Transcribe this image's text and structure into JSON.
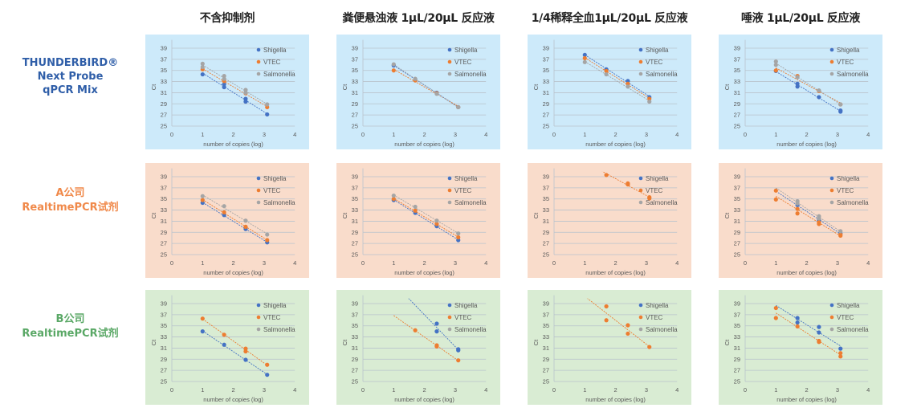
{
  "column_headers": [
    "不含抑制剂",
    "粪便悬浊液 1μL/20μL 反应液",
    "1/4稀释全血1μL/20μL 反应液",
    "唾液 1μL/20μL 反应液"
  ],
  "row_labels": [
    {
      "lines": [
        "THUNDERBIRD®",
        "Next Probe",
        "qPCR Mix"
      ],
      "color": "#2f5ea8"
    },
    {
      "lines": [
        "A公司",
        "RealtimePCR试剂"
      ],
      "color": "#f0894a"
    },
    {
      "lines": [
        "B公司",
        "RealtimePCR试剂"
      ],
      "color": "#5aa866"
    }
  ],
  "panel_colors": [
    "#cdeafa",
    "#f9dccb",
    "#d9ecd3"
  ],
  "series_colors": {
    "Shigella": "#4472c4",
    "VTEC": "#ed7d31",
    "Salmonella": "#a5a5a5"
  },
  "chart_data": [
    {
      "row": 0,
      "col": 0,
      "type": "scatter",
      "xlabel": "number of copies (log)",
      "ylabel": "Ct",
      "xlim": [
        0,
        4
      ],
      "ylim": [
        25,
        39
      ],
      "xticks": [
        "0",
        "1",
        "2",
        "3",
        "4"
      ],
      "yticks": [
        "25",
        "27",
        "29",
        "31",
        "33",
        "35",
        "37",
        "39"
      ],
      "grid": "horizontal",
      "trendline": "linear",
      "legend_position": "top-right",
      "legend": [
        "Shigella",
        "VTEC",
        "Salmonella"
      ],
      "series": [
        {
          "name": "Shigella",
          "points": [
            [
              1,
              34.3
            ],
            [
              1.7,
              32.5
            ],
            [
              1.7,
              32.0
            ],
            [
              2.4,
              29.9
            ],
            [
              2.4,
              29.4
            ],
            [
              3.1,
              27.1
            ]
          ]
        },
        {
          "name": "VTEC",
          "points": [
            [
              1,
              35.2
            ],
            [
              1.7,
              33.1
            ],
            [
              2.4,
              30.9
            ],
            [
              3.1,
              28.4
            ]
          ]
        },
        {
          "name": "Salmonella",
          "points": [
            [
              1,
              36.2
            ],
            [
              1,
              35.6
            ],
            [
              1.7,
              34.0
            ],
            [
              1.7,
              33.5
            ],
            [
              2.4,
              31.5
            ],
            [
              2.4,
              31.0
            ],
            [
              3.1,
              28.9
            ]
          ]
        }
      ]
    },
    {
      "row": 0,
      "col": 1,
      "type": "scatter",
      "xlabel": "number of copies (log)",
      "ylabel": "Ct",
      "xlim": [
        0,
        4
      ],
      "ylim": [
        25,
        39
      ],
      "xticks": [
        "0",
        "1",
        "2",
        "3",
        "4"
      ],
      "yticks": [
        "25",
        "27",
        "29",
        "31",
        "33",
        "35",
        "37",
        "39"
      ],
      "grid": "horizontal",
      "trendline": "linear",
      "legend_position": "top-right",
      "legend": [
        "Shigella",
        "VTEC",
        "Salmonella"
      ],
      "series": [
        {
          "name": "Shigella",
          "points": [
            [
              1,
              35.9
            ],
            [
              1.7,
              33.4
            ],
            [
              2.4,
              31.0
            ],
            [
              3.1,
              28.4
            ]
          ]
        },
        {
          "name": "VTEC",
          "points": [
            [
              1,
              35.0
            ],
            [
              1.7,
              33.2
            ],
            [
              2.4,
              30.9
            ],
            [
              3.1,
              28.4
            ]
          ]
        },
        {
          "name": "Salmonella",
          "points": [
            [
              1,
              36.1
            ],
            [
              1.7,
              33.5
            ],
            [
              2.4,
              30.8
            ],
            [
              3.1,
              28.4
            ]
          ]
        }
      ]
    },
    {
      "row": 0,
      "col": 2,
      "type": "scatter",
      "xlabel": "number of copies (log)",
      "ylabel": "Ct",
      "xlim": [
        0,
        4
      ],
      "ylim": [
        25,
        39
      ],
      "xticks": [
        "0",
        "1",
        "2",
        "3",
        "4"
      ],
      "yticks": [
        "25",
        "27",
        "29",
        "31",
        "33",
        "35",
        "37",
        "39"
      ],
      "grid": "horizontal",
      "trendline": "linear",
      "legend_position": "top-right",
      "legend": [
        "Shigella",
        "VTEC",
        "Salmonella"
      ],
      "series": [
        {
          "name": "Shigella",
          "points": [
            [
              1,
              37.8
            ],
            [
              1.7,
              35.2
            ],
            [
              2.4,
              33.1
            ],
            [
              3.1,
              30.2
            ]
          ]
        },
        {
          "name": "VTEC",
          "points": [
            [
              1,
              37.2
            ],
            [
              1.7,
              34.9
            ],
            [
              2.4,
              32.6
            ],
            [
              3.1,
              29.9
            ]
          ]
        },
        {
          "name": "Salmonella",
          "points": [
            [
              1,
              36.5
            ],
            [
              1.7,
              34.3
            ],
            [
              2.4,
              32.1
            ],
            [
              3.1,
              29.4
            ]
          ]
        }
      ]
    },
    {
      "row": 0,
      "col": 3,
      "type": "scatter",
      "xlabel": "number of copies (log)",
      "ylabel": "Ct",
      "xlim": [
        0,
        4
      ],
      "ylim": [
        25,
        39
      ],
      "xticks": [
        "0",
        "1",
        "2",
        "3",
        "4"
      ],
      "yticks": [
        "25",
        "27",
        "29",
        "31",
        "33",
        "35",
        "37",
        "39"
      ],
      "grid": "horizontal",
      "trendline": "linear",
      "legend_position": "top-right",
      "legend": [
        "Shigella",
        "VTEC",
        "Salmonella"
      ],
      "series": [
        {
          "name": "Shigella",
          "points": [
            [
              1,
              34.9
            ],
            [
              1.7,
              32.6
            ],
            [
              1.7,
              32.1
            ],
            [
              2.4,
              30.2
            ],
            [
              3.1,
              27.8
            ],
            [
              3.1,
              27.6
            ]
          ]
        },
        {
          "name": "VTEC",
          "points": [
            [
              1,
              35.0
            ],
            [
              1.7,
              34.0
            ],
            [
              2.4,
              31.3
            ],
            [
              3.1,
              28.9
            ]
          ]
        },
        {
          "name": "Salmonella",
          "points": [
            [
              1,
              36.6
            ],
            [
              1,
              36.0
            ],
            [
              1.7,
              33.8
            ],
            [
              2.4,
              31.4
            ],
            [
              3.1,
              28.9
            ]
          ]
        }
      ]
    },
    {
      "row": 1,
      "col": 0,
      "type": "scatter",
      "xlabel": "number of copies (log)",
      "ylabel": "Ct",
      "xlim": [
        0,
        4
      ],
      "ylim": [
        25,
        39
      ],
      "xticks": [
        "0",
        "1",
        "2",
        "3",
        "4"
      ],
      "yticks": [
        "25",
        "27",
        "29",
        "31",
        "33",
        "35",
        "37",
        "39"
      ],
      "grid": "horizontal",
      "trendline": "linear",
      "legend_position": "top-right",
      "legend": [
        "Shigella",
        "VTEC",
        "Salmonella"
      ],
      "series": [
        {
          "name": "Shigella",
          "points": [
            [
              1,
              34.3
            ],
            [
              1.7,
              32.1
            ],
            [
              2.4,
              29.6
            ],
            [
              3.1,
              27.2
            ]
          ]
        },
        {
          "name": "VTEC",
          "points": [
            [
              1,
              34.8
            ],
            [
              1.7,
              32.6
            ],
            [
              2.4,
              30.0
            ],
            [
              3.1,
              27.6
            ]
          ]
        },
        {
          "name": "Salmonella",
          "points": [
            [
              1,
              35.5
            ],
            [
              1.7,
              33.7
            ],
            [
              2.4,
              31.1
            ],
            [
              3.1,
              28.6
            ]
          ]
        }
      ]
    },
    {
      "row": 1,
      "col": 1,
      "type": "scatter",
      "xlabel": "number of copies (log)",
      "ylabel": "Ct",
      "xlim": [
        0,
        4
      ],
      "ylim": [
        25,
        39
      ],
      "xticks": [
        "0",
        "1",
        "2",
        "3",
        "4"
      ],
      "yticks": [
        "25",
        "27",
        "29",
        "31",
        "33",
        "35",
        "37",
        "39"
      ],
      "grid": "horizontal",
      "trendline": "linear",
      "legend_position": "top-right",
      "legend": [
        "Shigella",
        "VTEC",
        "Salmonella"
      ],
      "series": [
        {
          "name": "Shigella",
          "points": [
            [
              1,
              34.8
            ],
            [
              1.7,
              32.5
            ],
            [
              2.4,
              30.1
            ],
            [
              3.1,
              27.6
            ]
          ]
        },
        {
          "name": "VTEC",
          "points": [
            [
              1,
              35.0
            ],
            [
              1.7,
              32.9
            ],
            [
              2.4,
              30.5
            ],
            [
              3.1,
              28.1
            ]
          ]
        },
        {
          "name": "Salmonella",
          "points": [
            [
              1,
              35.6
            ],
            [
              1.7,
              33.6
            ],
            [
              2.4,
              31.1
            ],
            [
              3.1,
              28.8
            ]
          ]
        }
      ]
    },
    {
      "row": 1,
      "col": 2,
      "type": "scatter",
      "xlabel": "number of copies (log)",
      "ylabel": "Ct",
      "xlim": [
        0,
        4
      ],
      "ylim": [
        25,
        39
      ],
      "xticks": [
        "0",
        "1",
        "2",
        "3",
        "4"
      ],
      "yticks": [
        "25",
        "27",
        "29",
        "31",
        "33",
        "35",
        "37",
        "39"
      ],
      "grid": "horizontal",
      "trendline": "linear",
      "legend_position": "top-right",
      "legend": [
        "Shigella",
        "VTEC",
        "Salmonella"
      ],
      "series": [
        {
          "name": "VTEC",
          "points": [
            [
              1.7,
              39.3
            ],
            [
              2.4,
              37.8
            ],
            [
              2.4,
              37.6
            ],
            [
              3.1,
              35.3
            ],
            [
              3.1,
              35.1
            ]
          ]
        }
      ]
    },
    {
      "row": 1,
      "col": 3,
      "type": "scatter",
      "xlabel": "number of copies (log)",
      "ylabel": "Ct",
      "xlim": [
        0,
        4
      ],
      "ylim": [
        25,
        39
      ],
      "xticks": [
        "0",
        "1",
        "2",
        "3",
        "4"
      ],
      "yticks": [
        "25",
        "27",
        "29",
        "31",
        "33",
        "35",
        "37",
        "39"
      ],
      "grid": "horizontal",
      "trendline": "linear",
      "legend_position": "top-right",
      "legend": [
        "Shigella",
        "VTEC",
        "Salmonella"
      ],
      "series": [
        {
          "name": "Shigella",
          "points": [
            [
              1.7,
              33.9
            ],
            [
              2.4,
              31.2
            ],
            [
              3.1,
              28.8
            ]
          ]
        },
        {
          "name": "VTEC",
          "points": [
            [
              1,
              36.5
            ],
            [
              1,
              34.9
            ],
            [
              1.7,
              33.2
            ],
            [
              1.7,
              32.4
            ],
            [
              2.4,
              30.8
            ],
            [
              2.4,
              30.5
            ],
            [
              3.1,
              28.6
            ],
            [
              3.1,
              28.4
            ]
          ]
        },
        {
          "name": "Salmonella",
          "points": [
            [
              1.7,
              34.6
            ],
            [
              1.7,
              34.2
            ],
            [
              2.4,
              31.9
            ],
            [
              2.4,
              31.5
            ],
            [
              3.1,
              29.2
            ]
          ]
        }
      ]
    },
    {
      "row": 2,
      "col": 0,
      "type": "scatter",
      "xlabel": "number of copies (log)",
      "ylabel": "Ct",
      "xlim": [
        0,
        4
      ],
      "ylim": [
        25,
        39
      ],
      "xticks": [
        "0",
        "1",
        "2",
        "3",
        "4"
      ],
      "yticks": [
        "25",
        "27",
        "29",
        "31",
        "33",
        "35",
        "37",
        "39"
      ],
      "grid": "horizontal",
      "trendline": "linear",
      "legend_position": "top-right",
      "legend": [
        "Shigella",
        "VTEC",
        "Salmonella"
      ],
      "series": [
        {
          "name": "Shigella",
          "points": [
            [
              1,
              34.0
            ],
            [
              1.7,
              31.6
            ],
            [
              2.4,
              28.9
            ],
            [
              3.1,
              26.2
            ]
          ]
        },
        {
          "name": "VTEC",
          "points": [
            [
              1,
              36.3
            ],
            [
              1.7,
              33.4
            ],
            [
              2.4,
              30.9
            ],
            [
              2.4,
              30.4
            ],
            [
              3.1,
              28.0
            ]
          ]
        }
      ]
    },
    {
      "row": 2,
      "col": 1,
      "type": "scatter",
      "xlabel": "number of copies (log)",
      "ylabel": "Ct",
      "xlim": [
        0,
        4
      ],
      "ylim": [
        25,
        39
      ],
      "xticks": [
        "0",
        "1",
        "2",
        "3",
        "4"
      ],
      "yticks": [
        "25",
        "27",
        "29",
        "31",
        "33",
        "35",
        "37",
        "39"
      ],
      "grid": "horizontal",
      "trendline": "linear",
      "legend_position": "top-right",
      "legend": [
        "Shigella",
        "VTEC",
        "Salmonella"
      ],
      "series": [
        {
          "name": "Shigella",
          "points": [
            [
              2.4,
              35.4
            ],
            [
              2.4,
              34.0
            ],
            [
              3.1,
              30.8
            ],
            [
              3.1,
              30.6
            ]
          ]
        },
        {
          "name": "VTEC",
          "points": [
            [
              1.7,
              34.2
            ],
            [
              2.4,
              31.5
            ],
            [
              2.4,
              31.3
            ],
            [
              3.1,
              28.8
            ]
          ]
        }
      ]
    },
    {
      "row": 2,
      "col": 2,
      "type": "scatter",
      "xlabel": "number of copies (log)",
      "ylabel": "Ct",
      "xlim": [
        0,
        4
      ],
      "ylim": [
        25,
        39
      ],
      "xticks": [
        "0",
        "1",
        "2",
        "3",
        "4"
      ],
      "yticks": [
        "25",
        "27",
        "29",
        "31",
        "33",
        "35",
        "37",
        "39"
      ],
      "grid": "horizontal",
      "trendline": "linear",
      "legend_position": "top-right",
      "legend": [
        "Shigella",
        "VTEC",
        "Salmonella"
      ],
      "series": [
        {
          "name": "VTEC",
          "points": [
            [
              1.7,
              38.5
            ],
            [
              1.7,
              36.0
            ],
            [
              2.4,
              35.1
            ],
            [
              2.4,
              33.6
            ],
            [
              3.1,
              31.2
            ]
          ]
        }
      ]
    },
    {
      "row": 2,
      "col": 3,
      "type": "scatter",
      "xlabel": "number of copies (log)",
      "ylabel": "Ct",
      "xlim": [
        0,
        4
      ],
      "ylim": [
        25,
        39
      ],
      "xticks": [
        "0",
        "1",
        "2",
        "3",
        "4"
      ],
      "yticks": [
        "25",
        "27",
        "29",
        "31",
        "33",
        "35",
        "37",
        "39"
      ],
      "grid": "horizontal",
      "trendline": "linear",
      "legend_position": "top-right",
      "legend": [
        "Shigella",
        "VTEC",
        "Salmonella"
      ],
      "series": [
        {
          "name": "Shigella",
          "points": [
            [
              1.7,
              36.4
            ],
            [
              1.7,
              35.6
            ],
            [
              2.4,
              34.8
            ],
            [
              2.4,
              33.8
            ],
            [
              3.1,
              30.9
            ]
          ]
        },
        {
          "name": "VTEC",
          "points": [
            [
              1,
              38.2
            ],
            [
              1,
              36.4
            ],
            [
              1.7,
              34.9
            ],
            [
              2.4,
              32.3
            ],
            [
              2.4,
              32.1
            ],
            [
              3.1,
              30.1
            ],
            [
              3.1,
              29.5
            ]
          ]
        }
      ]
    }
  ]
}
